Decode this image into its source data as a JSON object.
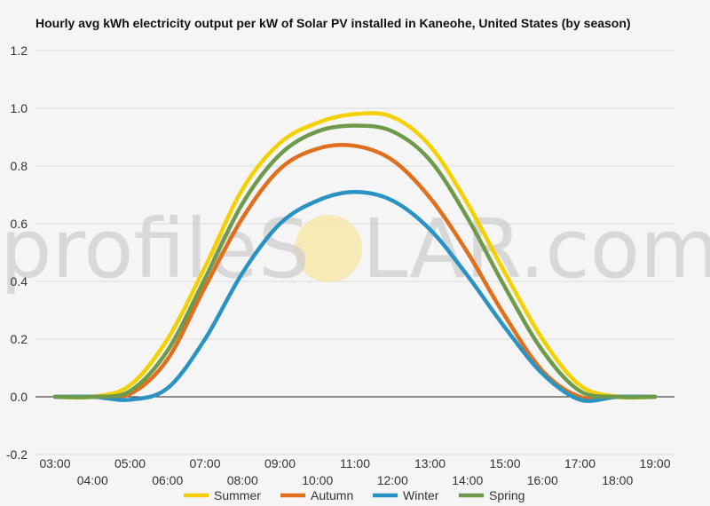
{
  "watermark": {
    "text_left": "profileS",
    "text_right": "LAR.com",
    "sun_color": "#f7e7a4"
  },
  "chart_data": {
    "type": "line",
    "title": "Hourly avg kWh electricity output per kW of Solar PV installed in Kaneohe, United States (by season)",
    "xlabel": "",
    "ylabel": "",
    "ylim": [
      -0.2,
      1.2
    ],
    "yticks": [
      "-0.2",
      "0.0",
      "0.2",
      "0.4",
      "0.6",
      "0.8",
      "1.0",
      "1.2"
    ],
    "grid": true,
    "legend_position": "bottom",
    "x": [
      "03:00",
      "04:00",
      "05:00",
      "06:00",
      "07:00",
      "08:00",
      "09:00",
      "10:00",
      "11:00",
      "12:00",
      "13:00",
      "14:00",
      "15:00",
      "16:00",
      "17:00",
      "18:00",
      "19:00"
    ],
    "series": [
      {
        "name": "Summer",
        "color": "#f5d000",
        "values": [
          0.0,
          0.0,
          0.04,
          0.2,
          0.45,
          0.72,
          0.88,
          0.95,
          0.98,
          0.97,
          0.87,
          0.67,
          0.43,
          0.2,
          0.04,
          0.0,
          0.0
        ]
      },
      {
        "name": "Autumn",
        "color": "#e0701e",
        "values": [
          0.0,
          0.0,
          0.01,
          0.13,
          0.38,
          0.62,
          0.79,
          0.86,
          0.87,
          0.82,
          0.69,
          0.5,
          0.28,
          0.09,
          0.0,
          0.0,
          0.0
        ]
      },
      {
        "name": "Winter",
        "color": "#2b93c4",
        "values": [
          0.0,
          0.0,
          -0.01,
          0.03,
          0.2,
          0.43,
          0.6,
          0.68,
          0.71,
          0.68,
          0.58,
          0.42,
          0.24,
          0.08,
          -0.01,
          0.0,
          0.0
        ]
      },
      {
        "name": "Spring",
        "color": "#6e9a4c",
        "values": [
          0.0,
          0.0,
          0.02,
          0.16,
          0.41,
          0.67,
          0.84,
          0.92,
          0.94,
          0.92,
          0.82,
          0.62,
          0.38,
          0.16,
          0.02,
          0.0,
          0.0
        ]
      }
    ]
  }
}
